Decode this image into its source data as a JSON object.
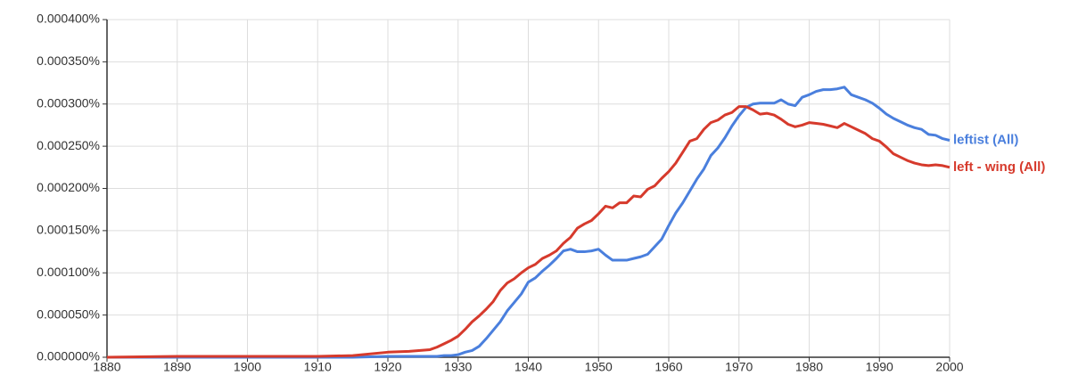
{
  "chart_data": {
    "type": "line",
    "x": [
      1880,
      1890,
      1900,
      1910,
      1915,
      1920,
      1923,
      1926,
      1927,
      1928,
      1929,
      1930,
      1931,
      1932,
      1933,
      1934,
      1935,
      1936,
      1937,
      1938,
      1939,
      1940,
      1941,
      1942,
      1943,
      1944,
      1945,
      1946,
      1947,
      1948,
      1949,
      1950,
      1951,
      1952,
      1953,
      1954,
      1955,
      1956,
      1957,
      1958,
      1959,
      1960,
      1961,
      1962,
      1963,
      1964,
      1965,
      1966,
      1967,
      1968,
      1969,
      1970,
      1971,
      1972,
      1973,
      1974,
      1975,
      1976,
      1977,
      1978,
      1979,
      1980,
      1981,
      1982,
      1983,
      1984,
      1985,
      1986,
      1987,
      1988,
      1989,
      1990,
      1991,
      1992,
      1993,
      1994,
      1995,
      1996,
      1997,
      1998,
      1999,
      2000
    ],
    "series": [
      {
        "name": "leftist (All)",
        "color": "#4a7fdd",
        "values": [
          0,
          0,
          0,
          0,
          0,
          1e-06,
          1e-06,
          1e-06,
          1e-06,
          2e-06,
          2e-06,
          3e-06,
          6e-06,
          8e-06,
          1.3e-05,
          2.2e-05,
          3.2e-05,
          4.2e-05,
          5.5e-05,
          6.5e-05,
          7.5e-05,
          8.9e-05,
          9.4e-05,
          0.000102,
          0.000109,
          0.000117,
          0.000126,
          0.000128,
          0.000125,
          0.000125,
          0.000126,
          0.000128,
          0.000121,
          0.000115,
          0.000115,
          0.000115,
          0.000117,
          0.000119,
          0.000122,
          0.000131,
          0.00014,
          0.000156,
          0.000171,
          0.000183,
          0.000197,
          0.000211,
          0.000223,
          0.000239,
          0.000248,
          0.00026,
          0.000274,
          0.000286,
          0.000296,
          0.0003,
          0.000301,
          0.000301,
          0.000301,
          0.000305,
          0.0003,
          0.000298,
          0.000308,
          0.000311,
          0.000315,
          0.000317,
          0.000317,
          0.000318,
          0.00032,
          0.000311,
          0.000308,
          0.000305,
          0.000301,
          0.000295,
          0.000288,
          0.000283,
          0.000279,
          0.000275,
          0.000272,
          0.00027,
          0.000264,
          0.000263,
          0.000259,
          0.000257
        ]
      },
      {
        "name": "left - wing (All)",
        "color": "#d63a2c",
        "values": [
          0,
          1e-06,
          1e-06,
          1e-06,
          2e-06,
          6e-06,
          7e-06,
          9e-06,
          1.2e-05,
          1.6e-05,
          2e-05,
          2.5e-05,
          3.3e-05,
          4.2e-05,
          4.9e-05,
          5.7e-05,
          6.6e-05,
          7.9e-05,
          8.8e-05,
          9.3e-05,
          0.0001,
          0.000106,
          0.00011,
          0.000117,
          0.000121,
          0.000126,
          0.000135,
          0.000142,
          0.000153,
          0.000158,
          0.000162,
          0.00017,
          0.000179,
          0.000177,
          0.000183,
          0.000183,
          0.000191,
          0.00019,
          0.000199,
          0.000203,
          0.000212,
          0.00022,
          0.00023,
          0.000243,
          0.000256,
          0.000259,
          0.00027,
          0.000278,
          0.000281,
          0.000287,
          0.00029,
          0.000297,
          0.000297,
          0.000293,
          0.000288,
          0.000289,
          0.000287,
          0.000282,
          0.000276,
          0.000273,
          0.000275,
          0.000278,
          0.000277,
          0.000276,
          0.000274,
          0.000272,
          0.000277,
          0.000273,
          0.000269,
          0.000265,
          0.000259,
          0.000256,
          0.000249,
          0.000241,
          0.000237,
          0.000233,
          0.00023,
          0.000228,
          0.000227,
          0.000228,
          0.000227,
          0.000225
        ]
      }
    ],
    "xlim": [
      1880,
      2000
    ],
    "xticks": [
      1880,
      1890,
      1900,
      1910,
      1920,
      1930,
      1940,
      1950,
      1960,
      1970,
      1980,
      1990,
      2000
    ],
    "ylim": [
      0,
      0.0004
    ],
    "yticks": [
      {
        "value": 0,
        "label": "0.000000%"
      },
      {
        "value": 5e-05,
        "label": "0.000050%"
      },
      {
        "value": 0.0001,
        "label": "0.000100%"
      },
      {
        "value": 0.00015,
        "label": "0.000150%"
      },
      {
        "value": 0.0002,
        "label": "0.000200%"
      },
      {
        "value": 0.00025,
        "label": "0.000250%"
      },
      {
        "value": 0.0003,
        "label": "0.000300%"
      },
      {
        "value": 0.00035,
        "label": "0.000350%"
      },
      {
        "value": 0.0004,
        "label": "0.000400%"
      }
    ],
    "grid": true
  }
}
